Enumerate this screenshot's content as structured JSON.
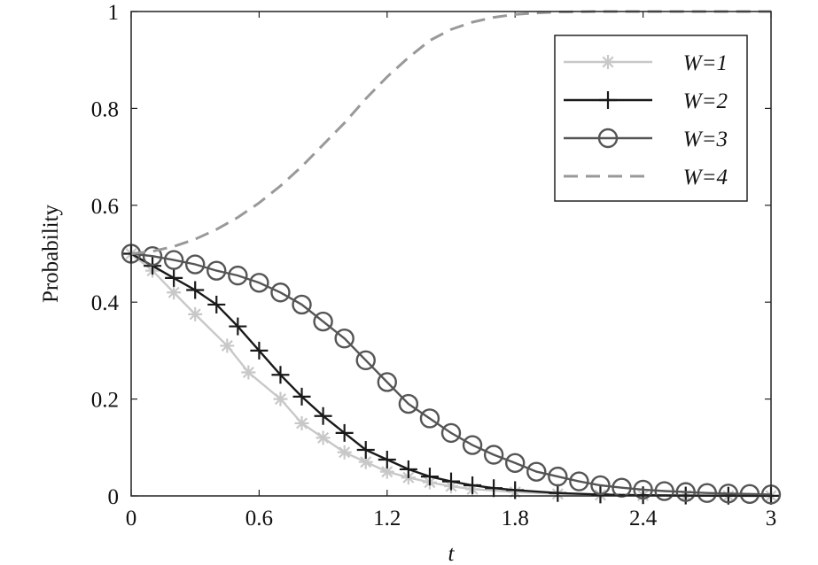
{
  "chart_data": {
    "type": "line",
    "title": "",
    "xlabel": "t",
    "ylabel": "Probability",
    "xlim": [
      0,
      3
    ],
    "ylim": [
      0,
      1
    ],
    "xticks": [
      "0",
      "0.6",
      "1.2",
      "1.8",
      "2.4",
      "3"
    ],
    "yticks": [
      "0",
      "0.2",
      "0.4",
      "0.6",
      "0.8",
      "1"
    ],
    "grid": false,
    "legend_position": "top-right",
    "series": [
      {
        "name": "W=1",
        "color": "#c8c8c8",
        "marker": "asterisk",
        "x": [
          0,
          0.1,
          0.2,
          0.3,
          0.45,
          0.55,
          0.7,
          0.8,
          0.9,
          1.0,
          1.1,
          1.2,
          1.3,
          1.4,
          1.5,
          1.6,
          1.8,
          2.0,
          2.2,
          2.4,
          2.6,
          2.8,
          3.0
        ],
        "y": [
          0.5,
          0.465,
          0.42,
          0.375,
          0.31,
          0.255,
          0.2,
          0.15,
          0.12,
          0.09,
          0.07,
          0.05,
          0.038,
          0.028,
          0.02,
          0.014,
          0.008,
          0.004,
          0.002,
          0.001,
          0.0005,
          0.0002,
          0.0001
        ]
      },
      {
        "name": "W=2",
        "color": "#1a1a1a",
        "marker": "plus",
        "x": [
          0,
          0.1,
          0.2,
          0.3,
          0.4,
          0.5,
          0.6,
          0.7,
          0.8,
          0.9,
          1.0,
          1.1,
          1.2,
          1.3,
          1.4,
          1.5,
          1.6,
          1.7,
          1.8,
          2.0,
          2.2,
          2.4,
          2.6,
          2.8,
          3.0
        ],
        "y": [
          0.5,
          0.475,
          0.45,
          0.425,
          0.395,
          0.35,
          0.3,
          0.25,
          0.205,
          0.165,
          0.13,
          0.095,
          0.075,
          0.055,
          0.04,
          0.03,
          0.022,
          0.016,
          0.012,
          0.006,
          0.003,
          0.0015,
          0.0008,
          0.0004,
          0.0002
        ]
      },
      {
        "name": "W=3",
        "color": "#555555",
        "marker": "circle",
        "x": [
          0,
          0.1,
          0.2,
          0.3,
          0.4,
          0.5,
          0.6,
          0.7,
          0.8,
          0.9,
          1.0,
          1.1,
          1.2,
          1.3,
          1.4,
          1.5,
          1.6,
          1.7,
          1.8,
          1.9,
          2.0,
          2.1,
          2.2,
          2.3,
          2.4,
          2.5,
          2.6,
          2.7,
          2.8,
          2.9,
          3.0
        ],
        "y": [
          0.5,
          0.495,
          0.487,
          0.478,
          0.465,
          0.455,
          0.44,
          0.42,
          0.395,
          0.36,
          0.325,
          0.28,
          0.235,
          0.19,
          0.16,
          0.13,
          0.105,
          0.085,
          0.068,
          0.05,
          0.04,
          0.03,
          0.022,
          0.017,
          0.013,
          0.01,
          0.008,
          0.006,
          0.005,
          0.004,
          0.003
        ]
      },
      {
        "name": "W=4",
        "color": "#999999",
        "marker": "none",
        "dash": true,
        "x": [
          0,
          0.1,
          0.2,
          0.3,
          0.4,
          0.5,
          0.6,
          0.7,
          0.8,
          0.9,
          1.0,
          1.1,
          1.2,
          1.3,
          1.4,
          1.5,
          1.6,
          1.7,
          1.8,
          1.9,
          2.0,
          2.2,
          2.4,
          2.6,
          2.8,
          3.0
        ],
        "y": [
          0.5,
          0.505,
          0.515,
          0.53,
          0.55,
          0.575,
          0.605,
          0.64,
          0.68,
          0.725,
          0.77,
          0.82,
          0.865,
          0.905,
          0.94,
          0.963,
          0.978,
          0.988,
          0.994,
          0.997,
          0.999,
          1.0,
          1.0,
          1.0,
          1.0,
          1.0
        ]
      }
    ]
  }
}
